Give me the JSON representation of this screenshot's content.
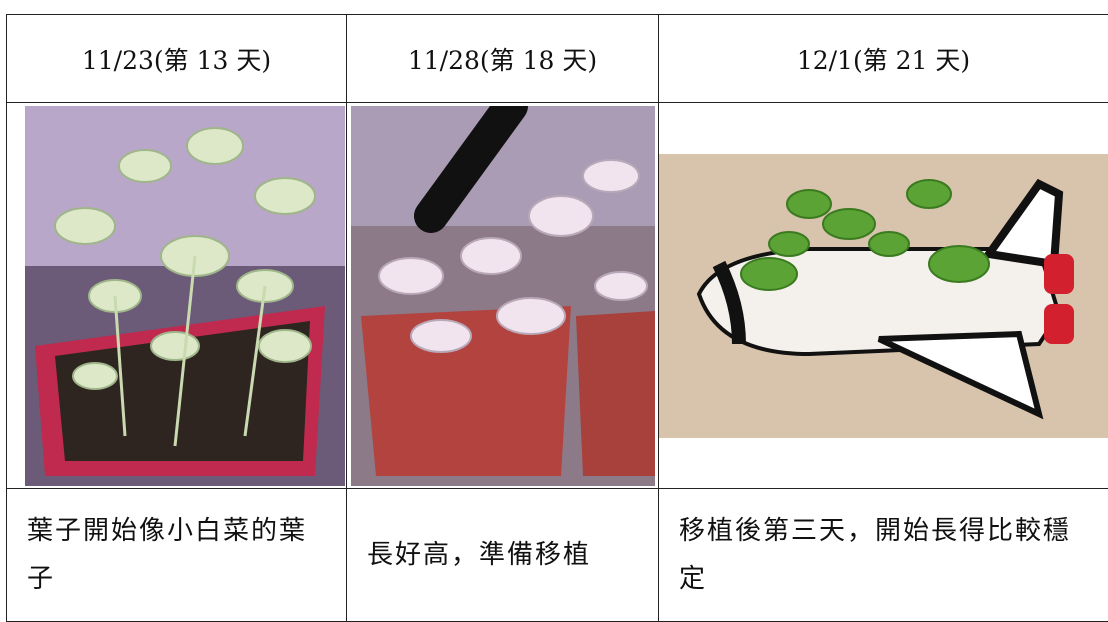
{
  "table": {
    "header": [
      "11/23(第 13 天)",
      "11/28(第 18 天)",
      "12/1(第 21 天)"
    ],
    "captions": [
      "葉子開始像小白菜的葉子",
      "長好高，準備移植",
      "移植後第三天，開始長得比較穩定"
    ]
  }
}
